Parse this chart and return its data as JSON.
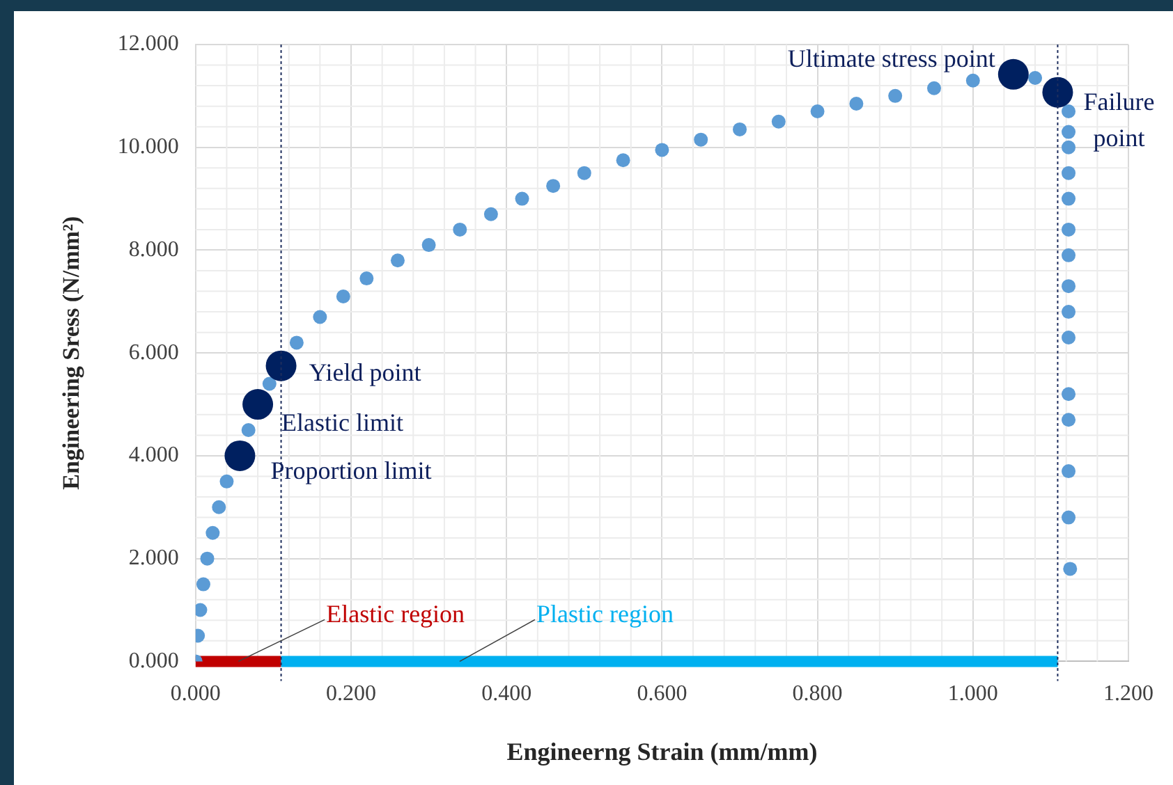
{
  "chart_data": {
    "type": "scatter",
    "xlabel": "Engineerng Strain (mm/mm)",
    "ylabel": "Engineering Sress (N/mm²)",
    "xlim": [
      0,
      1.2
    ],
    "ylim": [
      0,
      12
    ],
    "xticks": [
      {
        "value": 0,
        "label": "0.000"
      },
      {
        "value": 0.2,
        "label": "0.200"
      },
      {
        "value": 0.4,
        "label": "0.400"
      },
      {
        "value": 0.6,
        "label": "0.600"
      },
      {
        "value": 0.8,
        "label": "0.800"
      },
      {
        "value": 1.0,
        "label": "1.000"
      },
      {
        "value": 1.2,
        "label": "1.200"
      }
    ],
    "yticks": [
      {
        "value": 0,
        "label": "0.000"
      },
      {
        "value": 2,
        "label": "2.000"
      },
      {
        "value": 4,
        "label": "4.000"
      },
      {
        "value": 6,
        "label": "6.000"
      },
      {
        "value": 8,
        "label": "8.000"
      },
      {
        "value": 10,
        "label": "10.000"
      },
      {
        "value": 12,
        "label": "12.000"
      }
    ],
    "grid": true,
    "marker": "circle",
    "legend": false,
    "series": [
      {
        "color": "#5b9bd5",
        "x": [
          0,
          0.003,
          0.006,
          0.01,
          0.015,
          0.022,
          0.03,
          0.04,
          0.068,
          0.095,
          0.13,
          0.16,
          0.19,
          0.22,
          0.26,
          0.3,
          0.34,
          0.38,
          0.42,
          0.46,
          0.5,
          0.55,
          0.6,
          0.65,
          0.7,
          0.75,
          0.8,
          0.85,
          0.9,
          0.95,
          1.0,
          1.08,
          1.123,
          1.123,
          1.123,
          1.123,
          1.123,
          1.123,
          1.123,
          1.123,
          1.123,
          1.123,
          1.123,
          1.123,
          1.123,
          1.123,
          1.125
        ],
        "values": [
          0,
          0.5,
          1.0,
          1.5,
          2.0,
          2.5,
          3.0,
          3.5,
          4.5,
          5.4,
          6.2,
          6.7,
          7.1,
          7.45,
          7.8,
          8.1,
          8.4,
          8.7,
          9.0,
          9.25,
          9.5,
          9.75,
          9.95,
          10.15,
          10.35,
          10.5,
          10.7,
          10.85,
          11.0,
          11.15,
          11.3,
          11.35,
          10.7,
          10.3,
          10.0,
          9.5,
          9.0,
          8.4,
          7.9,
          7.3,
          6.8,
          6.3,
          5.2,
          4.7,
          3.7,
          2.8,
          1.8
        ]
      },
      {
        "color": "#002060",
        "x": [
          0.057,
          0.08,
          0.11,
          1.052,
          1.109
        ],
        "values": [
          4.0,
          5.0,
          5.75,
          11.42,
          11.07
        ]
      },
      {
        "type": "line",
        "marker": "none",
        "name": "Elastic region",
        "color": "#c00000",
        "x": [
          0,
          0.11
        ],
        "values": [
          0,
          0
        ]
      },
      {
        "type": "line",
        "marker": "none",
        "name": "Plastic region",
        "color": "#00b0f0",
        "x": [
          0.11,
          1.109
        ],
        "values": [
          0,
          0
        ]
      }
    ],
    "ref_lines": [
      {
        "axis": "x",
        "value": 0.11,
        "color": "#1f2f5e",
        "line_style": "dotted"
      },
      {
        "axis": "x",
        "value": 1.109,
        "color": "#1f2f5e",
        "line_style": "dotted"
      }
    ],
    "annotations": [
      {
        "text": "Proportion limit",
        "x": 0.057,
        "y": 4.0
      },
      {
        "text": "Elastic limit",
        "x": 0.08,
        "y": 5.0
      },
      {
        "text": "Yield point",
        "x": 0.11,
        "y": 5.75
      },
      {
        "text": "Ultimate stress point",
        "x": 1.052,
        "y": 11.42
      },
      {
        "text": "Failure point",
        "x": 1.109,
        "y": 11.07
      }
    ]
  }
}
